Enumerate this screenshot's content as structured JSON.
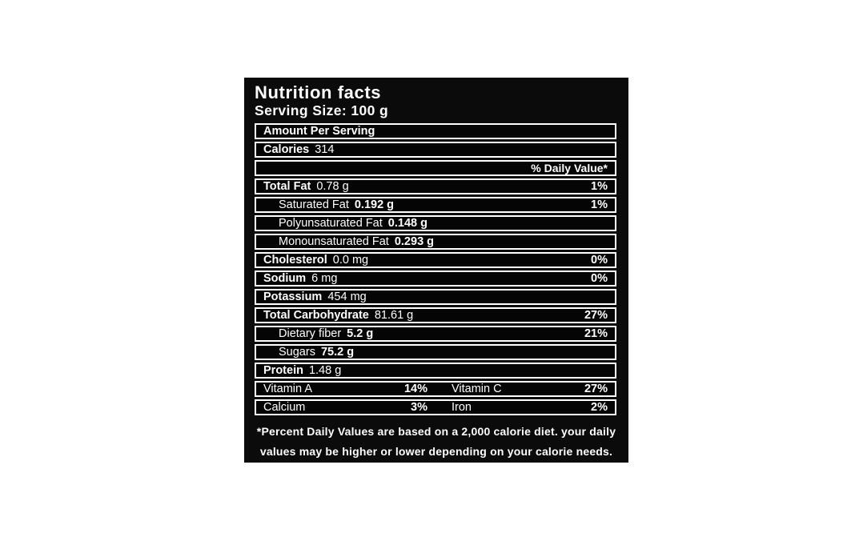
{
  "label": {
    "title": "Nutrition facts",
    "serving_size": "Serving Size: 100 g",
    "amount_per_serving": "Amount Per Serving",
    "calories_label": "Calories",
    "calories_value": "314",
    "daily_value_header": "% Daily Value*",
    "rows": [
      {
        "label": "Total Fat",
        "value": "0.78 g",
        "dv": "1%"
      },
      {
        "label": "Saturated Fat",
        "value": "0.192 g",
        "dv": "1%"
      },
      {
        "label": "Polyunsaturated Fat",
        "value": "0.148 g",
        "dv": ""
      },
      {
        "label": "Monounsaturated Fat",
        "value": "0.293 g",
        "dv": ""
      },
      {
        "label": "Cholesterol",
        "value": "0.0 mg",
        "dv": "0%"
      },
      {
        "label": "Sodium",
        "value": "6 mg",
        "dv": "0%"
      },
      {
        "label": "Potassium",
        "value": "454 mg",
        "dv": ""
      },
      {
        "label": "Total Carbohydrate",
        "value": "81.61 g",
        "dv": "27%"
      },
      {
        "label": "Dietary fiber",
        "value": "5.2 g",
        "dv": "21%"
      },
      {
        "label": "Sugars",
        "value": "75.2 g",
        "dv": ""
      },
      {
        "label": "Protein",
        "value": "1.48 g",
        "dv": ""
      }
    ],
    "micronutrients": [
      {
        "left_label": "Vitamin A",
        "left_value": "14%",
        "right_label": "Vitamin C",
        "right_value": "27%"
      },
      {
        "left_label": "Calcium",
        "left_value": "3%",
        "right_label": "Iron",
        "right_value": "2%"
      }
    ],
    "footnote_line1": "*Percent Daily Values are based on a 2,000 calorie diet. your daily",
    "footnote_line2": "values may be higher or lower depending on your calorie needs."
  },
  "colors": {
    "page_bg": "#ffffff",
    "panel_bg": "#0b0b0b",
    "text": "#ffffff"
  }
}
